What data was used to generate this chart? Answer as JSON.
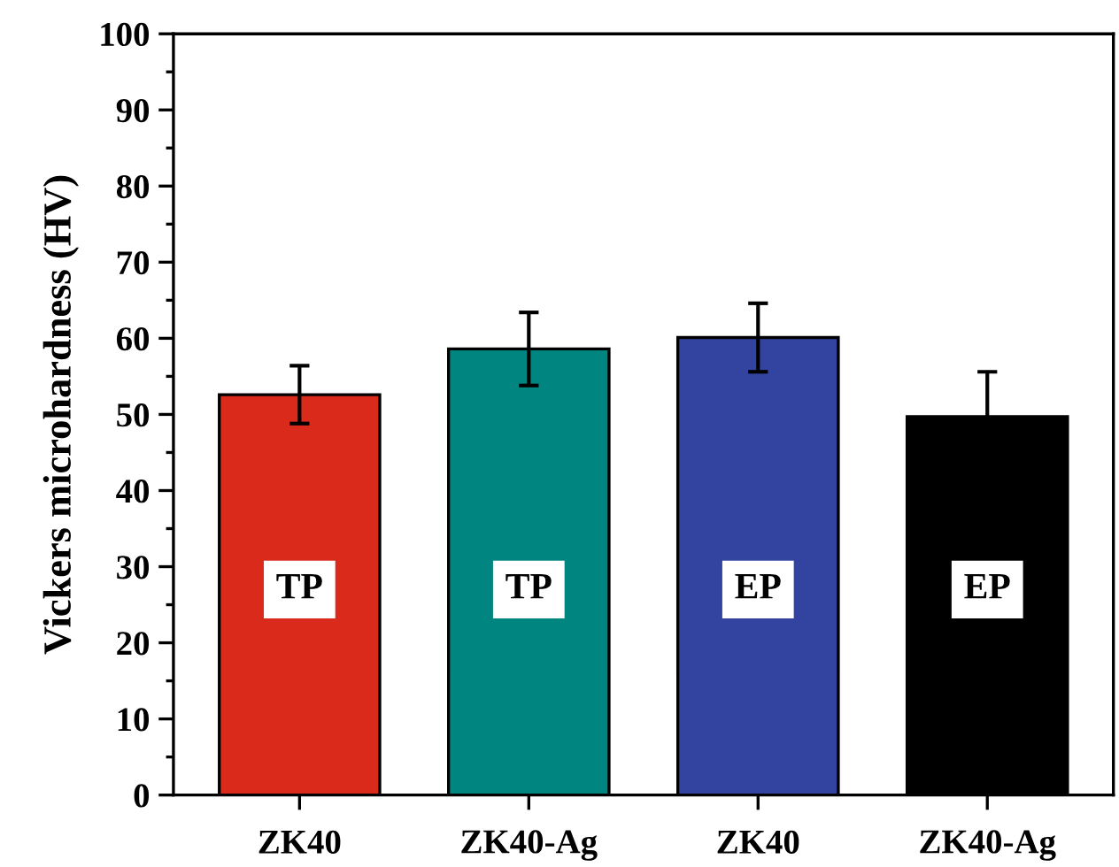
{
  "chart_data": {
    "type": "bar",
    "ylabel": "Vickers microhardness (HV)",
    "categories": [
      "ZK40",
      "ZK40-Ag",
      "ZK40",
      "ZK40-Ag"
    ],
    "values": [
      52.6,
      58.6,
      60.1,
      49.7
    ],
    "errors": [
      3.8,
      4.8,
      4.5,
      5.9
    ],
    "colors": [
      "#d92a1c",
      "#008580",
      "#3344a0",
      "#000000"
    ],
    "annotations": [
      "TP",
      "TP",
      "EP",
      "EP"
    ],
    "ylim": [
      0,
      100
    ],
    "yticks": [
      0,
      10,
      20,
      30,
      40,
      50,
      60,
      70,
      80,
      90,
      100
    ],
    "grid": false,
    "legend": false
  }
}
